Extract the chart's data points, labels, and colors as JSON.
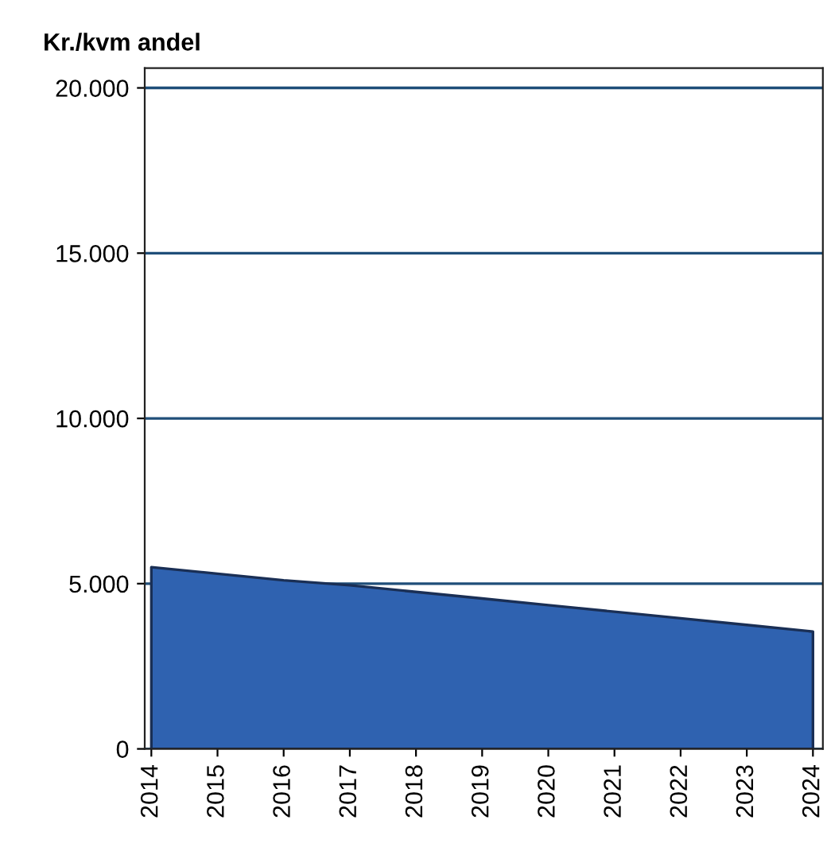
{
  "chart_data": {
    "type": "area",
    "title": "Kr./kvm andel",
    "x": [
      2014,
      2015,
      2016,
      2017,
      2018,
      2019,
      2020,
      2021,
      2022,
      2023,
      2024
    ],
    "series": [
      {
        "color": "#2f62b0",
        "values": [
          5500,
          5300,
          5100,
          4950,
          4750,
          4550,
          4350,
          4150,
          3950,
          3750,
          3550
        ]
      }
    ],
    "xlim": [
      2013.9,
      2024.15
    ],
    "xticks": [
      2014,
      2015,
      2016,
      2017,
      2018,
      2019,
      2020,
      2021,
      2022,
      2023,
      2024
    ],
    "ylim": [
      0,
      20600
    ],
    "yticks": [
      {
        "value": 0,
        "label": "0"
      },
      {
        "value": 5000,
        "label": "5.000"
      },
      {
        "value": 10000,
        "label": "10.000"
      },
      {
        "value": 15000,
        "label": "15.000"
      },
      {
        "value": 20000,
        "label": "20.000"
      }
    ],
    "grid": "y"
  }
}
